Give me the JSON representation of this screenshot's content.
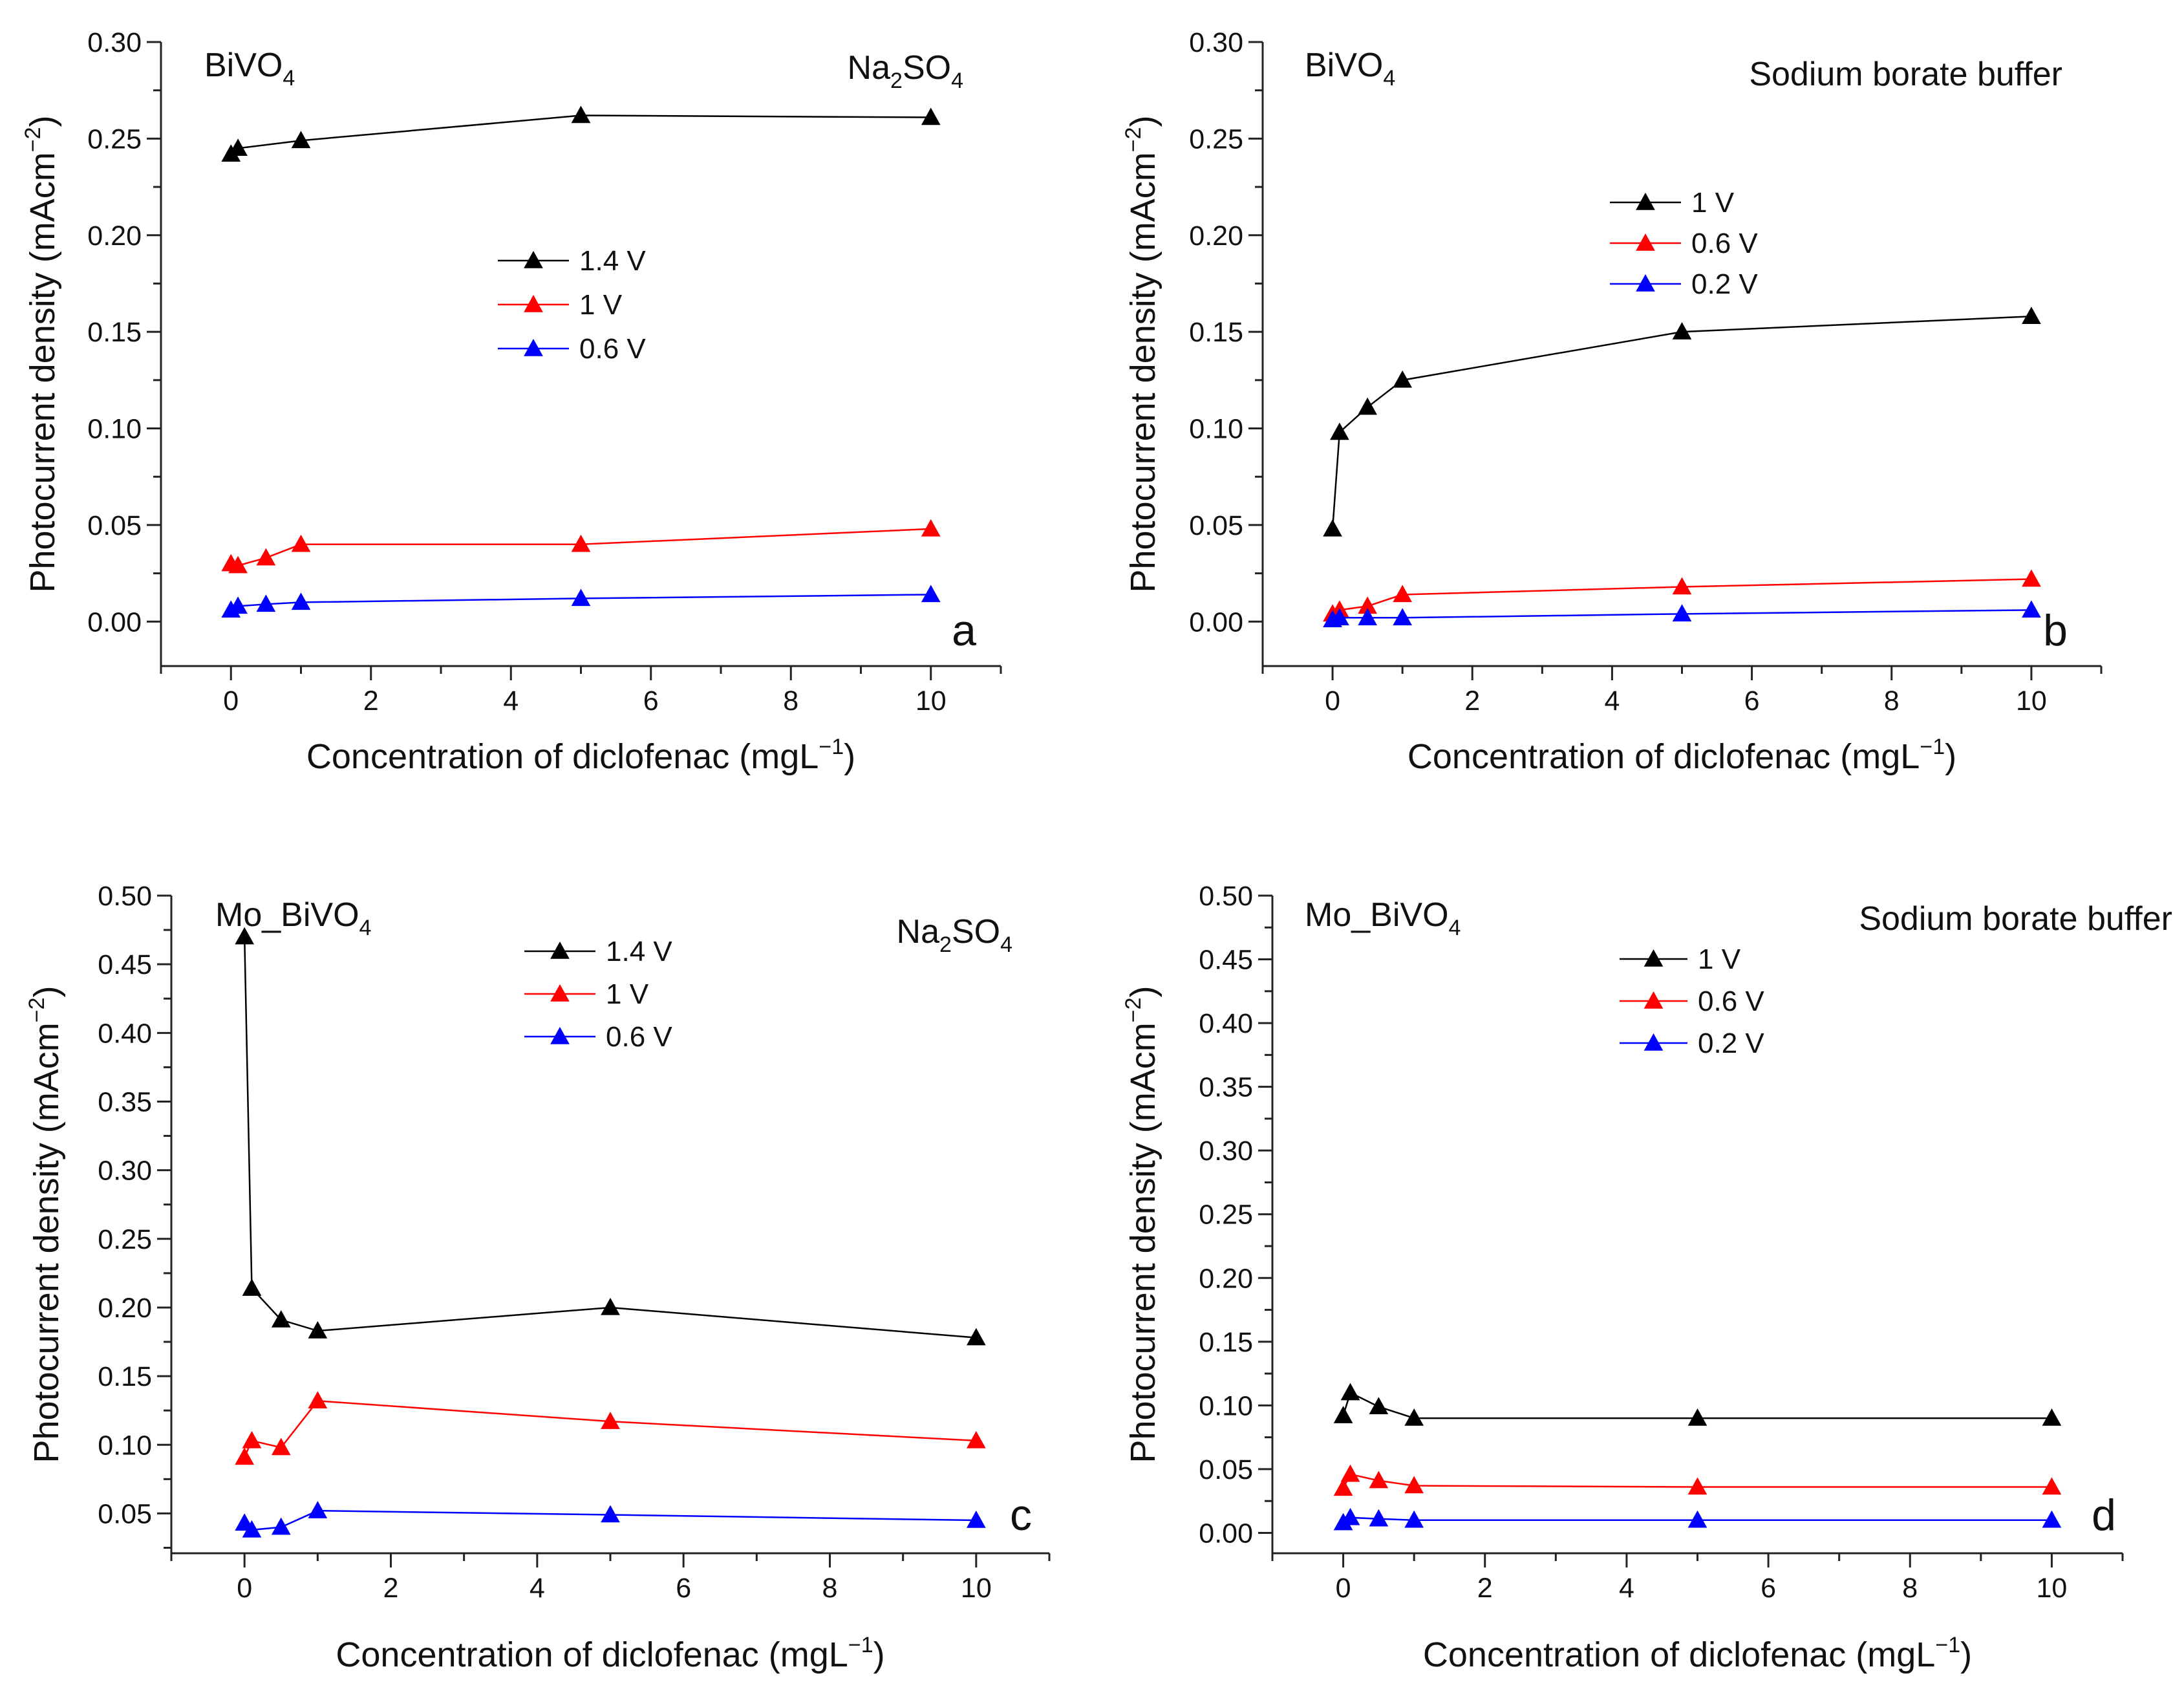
{
  "chart_data": [
    {
      "panel": "a",
      "type": "line",
      "material_main": "BiVO",
      "material_sub": "4",
      "electrolyte": {
        "main": "Na",
        "sub1": "2",
        "mid": "SO",
        "sub2": "4",
        "plain": ""
      },
      "xlabel": "Concentration of diclofenac (mgL",
      "xlabel_sup": "−1",
      "xlabel_end": ")",
      "ylabel": "Photocurrent density (mAcm",
      "ylabel_sup": "−2",
      "ylabel_end": ")",
      "xlim": [
        -1,
        11
      ],
      "ylim": [
        -0.023,
        0.3
      ],
      "xticks": [
        0,
        2,
        4,
        6,
        8,
        10
      ],
      "xtick_labels": [
        "0",
        "2",
        "4",
        "6",
        "8",
        "10"
      ],
      "yticks": [
        0.0,
        0.05,
        0.1,
        0.15,
        0.2,
        0.25,
        0.3
      ],
      "ytick_labels": [
        "0.00",
        "0.05",
        "0.10",
        "0.15",
        "0.20",
        "0.25",
        "0.30"
      ],
      "x": [
        0,
        0.1,
        0.5,
        1,
        5,
        10
      ],
      "series": [
        {
          "name": "1.4 V",
          "color": "#000000",
          "points": [
            [
              0,
              0.242
            ],
            [
              0.1,
              0.245
            ],
            [
              1,
              0.249
            ],
            [
              5,
              0.262
            ],
            [
              10,
              0.261
            ]
          ]
        },
        {
          "name": "1 V",
          "color": "#ff0000",
          "points": [
            [
              0,
              0.03
            ],
            [
              0.1,
              0.029
            ],
            [
              0.5,
              0.033
            ],
            [
              1,
              0.04
            ],
            [
              5,
              0.04
            ],
            [
              10,
              0.048
            ]
          ]
        },
        {
          "name": "0.6 V",
          "color": "#0000ff",
          "points": [
            [
              0,
              0.006
            ],
            [
              0.1,
              0.008
            ],
            [
              0.5,
              0.009
            ],
            [
              1,
              0.01
            ],
            [
              5,
              0.012
            ],
            [
              10,
              0.014
            ]
          ]
        }
      ]
    },
    {
      "panel": "b",
      "type": "line",
      "material_main": "BiVO",
      "material_sub": "4",
      "electrolyte": {
        "main": "",
        "sub1": "",
        "mid": "",
        "sub2": "",
        "plain": "Sodium borate buffer"
      },
      "xlabel": "Concentration of diclofenac (mgL",
      "xlabel_sup": "−1",
      "xlabel_end": ")",
      "ylabel": "Photocurrent density (mAcm",
      "ylabel_sup": "−2",
      "ylabel_end": ")",
      "xlim": [
        -1,
        11
      ],
      "ylim": [
        -0.023,
        0.3
      ],
      "xticks": [
        0,
        2,
        4,
        6,
        8,
        10
      ],
      "xtick_labels": [
        "0",
        "2",
        "4",
        "6",
        "8",
        "10"
      ],
      "yticks": [
        0.0,
        0.05,
        0.1,
        0.15,
        0.2,
        0.25,
        0.3
      ],
      "ytick_labels": [
        "0.00",
        "0.05",
        "0.10",
        "0.15",
        "0.20",
        "0.25",
        "0.30"
      ],
      "x": [
        0,
        0.1,
        0.5,
        1,
        5,
        10
      ],
      "series": [
        {
          "name": "1 V",
          "color": "#000000",
          "points": [
            [
              0,
              0.048
            ],
            [
              0.1,
              0.098
            ],
            [
              0.5,
              0.111
            ],
            [
              1,
              0.125
            ],
            [
              5,
              0.15
            ],
            [
              10,
              0.158
            ]
          ]
        },
        {
          "name": "0.6 V",
          "color": "#ff0000",
          "points": [
            [
              0,
              0.004
            ],
            [
              0.1,
              0.006
            ],
            [
              0.5,
              0.008
            ],
            [
              1,
              0.014
            ],
            [
              5,
              0.018
            ],
            [
              10,
              0.022
            ]
          ]
        },
        {
          "name": "0.2 V",
          "color": "#0000ff",
          "points": [
            [
              0,
              0.001
            ],
            [
              0.1,
              0.002
            ],
            [
              0.5,
              0.002
            ],
            [
              1,
              0.002
            ],
            [
              5,
              0.004
            ],
            [
              10,
              0.006
            ]
          ]
        }
      ]
    },
    {
      "panel": "c",
      "type": "line",
      "material_main": "Mo_BiVO",
      "material_sub": "4",
      "electrolyte": {
        "main": "Na",
        "sub1": "2",
        "mid": "SO",
        "sub2": "4",
        "plain": ""
      },
      "xlabel": "Concentration of diclofenac (mgL",
      "xlabel_sup": "−1",
      "xlabel_end": ")",
      "ylabel": "Photocurrent density (mAcm",
      "ylabel_sup": "−2",
      "ylabel_end": ")",
      "xlim": [
        -1,
        11
      ],
      "ylim": [
        0.021,
        0.5
      ],
      "xticks": [
        0,
        2,
        4,
        6,
        8,
        10
      ],
      "xtick_labels": [
        "0",
        "2",
        "4",
        "6",
        "8",
        "10"
      ],
      "yticks": [
        0.05,
        0.1,
        0.15,
        0.2,
        0.25,
        0.3,
        0.35,
        0.4,
        0.45,
        0.5
      ],
      "ytick_labels": [
        "0.05",
        "0.10",
        "0.15",
        "0.20",
        "0.25",
        "0.30",
        "0.35",
        "0.40",
        "0.45",
        "0.50"
      ],
      "x": [
        0,
        0.1,
        0.5,
        1,
        5,
        10
      ],
      "series": [
        {
          "name": "1.4 V",
          "color": "#000000",
          "points": [
            [
              0,
              0.47
            ],
            [
              0.1,
              0.214
            ],
            [
              0.5,
              0.191
            ],
            [
              1,
              0.183
            ],
            [
              5,
              0.2
            ],
            [
              10,
              0.178
            ]
          ]
        },
        {
          "name": "1 V",
          "color": "#ff0000",
          "points": [
            [
              0,
              0.091
            ],
            [
              0.1,
              0.103
            ],
            [
              0.5,
              0.098
            ],
            [
              1,
              0.132
            ],
            [
              5,
              0.117
            ],
            [
              10,
              0.103
            ]
          ]
        },
        {
          "name": "0.6 V",
          "color": "#0000ff",
          "points": [
            [
              0,
              0.043
            ],
            [
              0.1,
              0.038
            ],
            [
              0.5,
              0.04
            ],
            [
              1,
              0.052
            ],
            [
              5,
              0.049
            ],
            [
              10,
              0.045
            ]
          ]
        }
      ]
    },
    {
      "panel": "d",
      "type": "line",
      "material_main": "Mo_BiVO",
      "material_sub": "4",
      "electrolyte": {
        "main": "",
        "sub1": "",
        "mid": "",
        "sub2": "",
        "plain": "Sodium borate buffer"
      },
      "xlabel": "Concentration of diclofenac (mgL",
      "xlabel_sup": "−1",
      "xlabel_end": ")",
      "ylabel": "Photocurrent density (mAcm",
      "ylabel_sup": "−2",
      "ylabel_end": ")",
      "xlim": [
        -1,
        11
      ],
      "ylim": [
        -0.016,
        0.5
      ],
      "xticks": [
        0,
        2,
        4,
        6,
        8,
        10
      ],
      "xtick_labels": [
        "0",
        "2",
        "4",
        "6",
        "8",
        "10"
      ],
      "yticks": [
        0.0,
        0.05,
        0.1,
        0.15,
        0.2,
        0.25,
        0.3,
        0.35,
        0.4,
        0.45,
        0.5
      ],
      "ytick_labels": [
        "0.00",
        "0.05",
        "0.10",
        "0.15",
        "0.20",
        "0.25",
        "0.30",
        "0.35",
        "0.40",
        "0.45",
        "0.50"
      ],
      "x": [
        0,
        0.1,
        0.5,
        1,
        5,
        10
      ],
      "series": [
        {
          "name": "1 V",
          "color": "#000000",
          "points": [
            [
              0,
              0.092
            ],
            [
              0.1,
              0.11
            ],
            [
              0.5,
              0.099
            ],
            [
              1,
              0.09
            ],
            [
              5,
              0.09
            ],
            [
              10,
              0.09
            ]
          ]
        },
        {
          "name": "0.6 V",
          "color": "#ff0000",
          "points": [
            [
              0,
              0.035
            ],
            [
              0.1,
              0.046
            ],
            [
              0.5,
              0.041
            ],
            [
              1,
              0.037
            ],
            [
              5,
              0.036
            ],
            [
              10,
              0.036
            ]
          ]
        },
        {
          "name": "0.2 V",
          "color": "#0000ff",
          "points": [
            [
              0,
              0.008
            ],
            [
              0.1,
              0.012
            ],
            [
              0.5,
              0.011
            ],
            [
              1,
              0.01
            ],
            [
              5,
              0.01
            ],
            [
              10,
              0.01
            ]
          ]
        }
      ]
    }
  ]
}
